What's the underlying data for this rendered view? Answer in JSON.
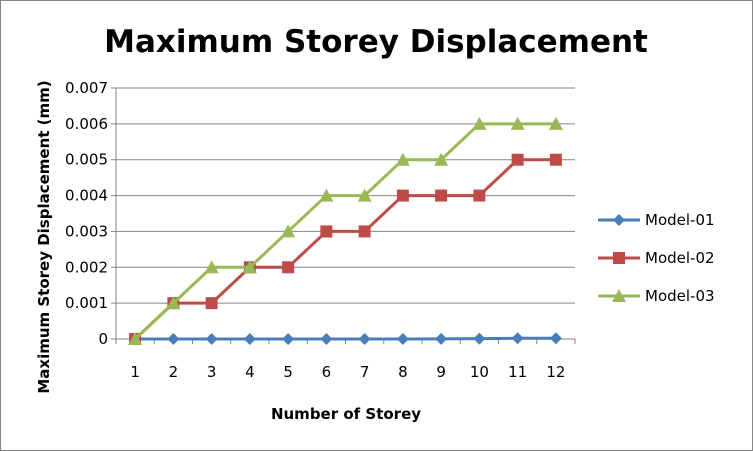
{
  "chart_data": {
    "type": "line",
    "title": "Maximum Storey Displacement",
    "xlabel": "Number of Storey",
    "ylabel": "Maximum Storey Displacement (mm)",
    "categories": [
      "1",
      "2",
      "3",
      "4",
      "5",
      "6",
      "7",
      "8",
      "9",
      "10",
      "11",
      "12"
    ],
    "yticks": [
      "0",
      "0.001",
      "0.002",
      "0.003",
      "0.004",
      "0.005",
      "0.006",
      "0.007"
    ],
    "ylim": [
      0,
      0.007
    ],
    "grid": "horizontal",
    "legend_position": "right",
    "series": [
      {
        "name": "Model-01",
        "color": "#4a7ebb",
        "marker": "diamond",
        "values": [
          0,
          0,
          0,
          0,
          0,
          0,
          0,
          0,
          5e-06,
          1e-05,
          2e-05,
          2e-05
        ]
      },
      {
        "name": "Model-02",
        "color": "#be4b48",
        "marker": "square",
        "values": [
          0,
          0.001,
          0.001,
          0.002,
          0.002,
          0.003,
          0.003,
          0.004,
          0.004,
          0.004,
          0.005,
          0.005
        ]
      },
      {
        "name": "Model-03",
        "color": "#98b954",
        "marker": "triangle",
        "values": [
          0,
          0.001,
          0.002,
          0.002,
          0.003,
          0.004,
          0.004,
          0.005,
          0.005,
          0.006,
          0.006,
          0.006
        ]
      }
    ]
  }
}
